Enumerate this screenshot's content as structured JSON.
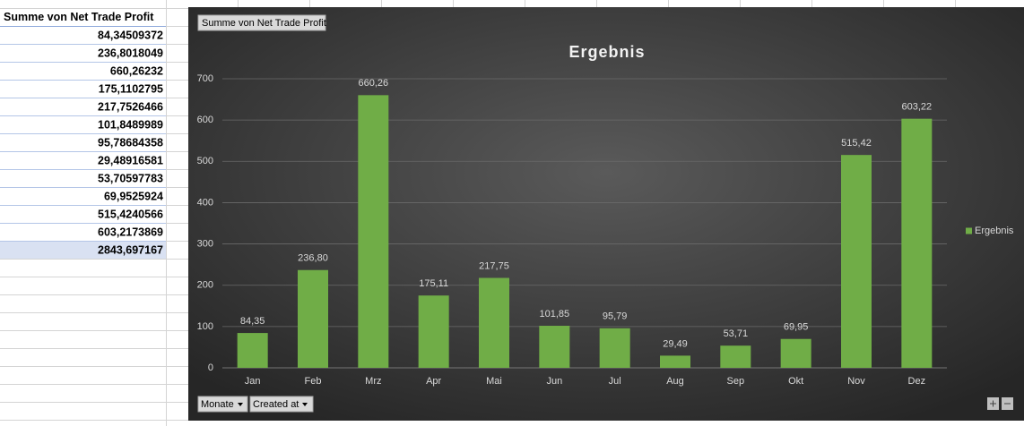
{
  "table": {
    "header": "Summe von Net Trade Profit",
    "rows": [
      "84,34509372",
      "236,8018049",
      "660,26232",
      "175,1102795",
      "217,7526466",
      "101,8489989",
      "95,78684358",
      "29,48916581",
      "53,70597783",
      "69,9525924",
      "515,4240566",
      "603,2173869"
    ],
    "total": "2843,697167"
  },
  "pivot_buttons": {
    "value_field": "Summe  von Net Trade Profit",
    "axis_fields": [
      "Monate",
      "Created at"
    ]
  },
  "chart_data": {
    "type": "bar",
    "title": "Ergebnis",
    "categories": [
      "Jan",
      "Feb",
      "Mrz",
      "Apr",
      "Mai",
      "Jun",
      "Jul",
      "Aug",
      "Sep",
      "Okt",
      "Nov",
      "Dez"
    ],
    "series": [
      {
        "name": "Ergebnis",
        "color": "#70ad47",
        "values": [
          84.35,
          236.8,
          660.26,
          175.11,
          217.75,
          101.85,
          95.79,
          29.49,
          53.71,
          69.95,
          515.42,
          603.22
        ],
        "value_labels": [
          "84,35",
          "236,80",
          "660,26",
          "175,11",
          "217,75",
          "101,85",
          "95,79",
          "29,49",
          "53,71",
          "69,95",
          "515,42",
          "603,22"
        ]
      }
    ],
    "ylim": [
      0,
      700
    ],
    "yticks": [
      0,
      100,
      200,
      300,
      400,
      500,
      600,
      700
    ],
    "grid": true,
    "legend": "right"
  }
}
